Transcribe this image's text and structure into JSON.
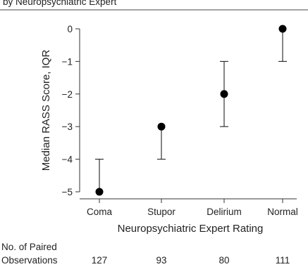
{
  "chart_data": {
    "type": "scatter",
    "title_fragment": "by Neuropsychiatric Expert",
    "xlabel": "Neuropsychiatric Expert Rating",
    "ylabel": "Median RASS Score, IQR",
    "categories": [
      "Coma",
      "Stupor",
      "Delirium",
      "Normal"
    ],
    "ylim": [
      -5,
      0
    ],
    "yticks": [
      0,
      -1,
      -2,
      -3,
      -4,
      -5
    ],
    "ytick_labels": [
      "0",
      "−1",
      "−2",
      "−3",
      "−4",
      "−5"
    ],
    "median": [
      -5,
      -3,
      -2,
      0
    ],
    "iqr_low": [
      -5,
      -4,
      -3,
      -1
    ],
    "iqr_high": [
      -4,
      -3,
      -1,
      0
    ],
    "grid": false,
    "observations_label_line1": "No. of Paired",
    "observations_label_line2": "Observations",
    "observations": [
      "127",
      "93",
      "80",
      "111"
    ]
  }
}
